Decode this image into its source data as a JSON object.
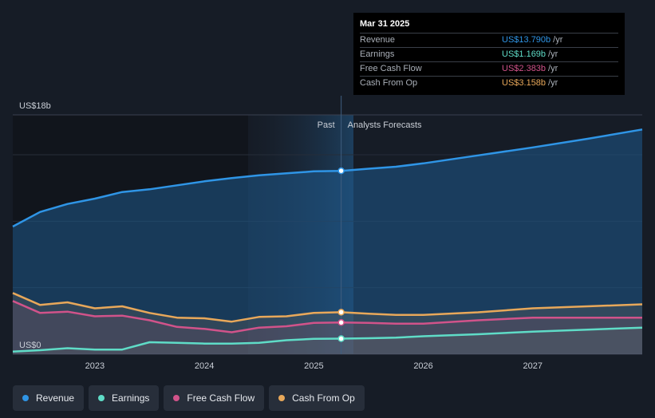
{
  "chart_data": {
    "type": "line",
    "y_top_label": "US$18b",
    "y_bottom_label": "US$0",
    "ylim": [
      0,
      18
    ],
    "xlim": [
      2022.25,
      2028.0
    ],
    "x_ticks": [
      2023,
      2024,
      2025,
      2026,
      2027
    ],
    "divider_x": 2025.25,
    "past_label": "Past",
    "forecast_label": "Analysts Forecasts",
    "series": [
      {
        "name": "Revenue",
        "color": "#2f95e6",
        "points": [
          [
            2022.25,
            9.6
          ],
          [
            2022.5,
            10.7
          ],
          [
            2022.75,
            11.3
          ],
          [
            2023.0,
            11.7
          ],
          [
            2023.25,
            12.2
          ],
          [
            2023.5,
            12.4
          ],
          [
            2023.75,
            12.7
          ],
          [
            2024.0,
            13.0
          ],
          [
            2024.25,
            13.25
          ],
          [
            2024.5,
            13.45
          ],
          [
            2024.75,
            13.6
          ],
          [
            2025.0,
            13.75
          ],
          [
            2025.25,
            13.79
          ],
          [
            2025.5,
            13.95
          ],
          [
            2025.75,
            14.1
          ],
          [
            2026.0,
            14.35
          ],
          [
            2026.5,
            14.95
          ],
          [
            2027.0,
            15.55
          ],
          [
            2027.5,
            16.2
          ],
          [
            2028.0,
            16.9
          ]
        ]
      },
      {
        "name": "Earnings",
        "color": "#5fdcc7",
        "points": [
          [
            2022.25,
            0.2
          ],
          [
            2022.5,
            0.3
          ],
          [
            2022.75,
            0.45
          ],
          [
            2023.0,
            0.35
          ],
          [
            2023.25,
            0.35
          ],
          [
            2023.5,
            0.9
          ],
          [
            2023.75,
            0.85
          ],
          [
            2024.0,
            0.8
          ],
          [
            2024.25,
            0.8
          ],
          [
            2024.5,
            0.85
          ],
          [
            2024.75,
            1.05
          ],
          [
            2025.0,
            1.15
          ],
          [
            2025.25,
            1.169
          ],
          [
            2025.5,
            1.2
          ],
          [
            2025.75,
            1.25
          ],
          [
            2026.0,
            1.35
          ],
          [
            2026.5,
            1.5
          ],
          [
            2027.0,
            1.7
          ],
          [
            2027.5,
            1.85
          ],
          [
            2028.0,
            2.0
          ]
        ]
      },
      {
        "name": "Free Cash Flow",
        "color": "#d1538a",
        "points": [
          [
            2022.25,
            4.0
          ],
          [
            2022.5,
            3.1
          ],
          [
            2022.75,
            3.2
          ],
          [
            2023.0,
            2.85
          ],
          [
            2023.25,
            2.9
          ],
          [
            2023.5,
            2.55
          ],
          [
            2023.75,
            2.05
          ],
          [
            2024.0,
            1.9
          ],
          [
            2024.25,
            1.65
          ],
          [
            2024.5,
            2.0
          ],
          [
            2024.75,
            2.1
          ],
          [
            2025.0,
            2.35
          ],
          [
            2025.25,
            2.383
          ],
          [
            2025.5,
            2.35
          ],
          [
            2025.75,
            2.3
          ],
          [
            2026.0,
            2.3
          ],
          [
            2026.5,
            2.55
          ],
          [
            2027.0,
            2.75
          ],
          [
            2027.5,
            2.75
          ],
          [
            2028.0,
            2.75
          ]
        ]
      },
      {
        "name": "Cash From Op",
        "color": "#e8a85a",
        "points": [
          [
            2022.25,
            4.6
          ],
          [
            2022.5,
            3.7
          ],
          [
            2022.75,
            3.9
          ],
          [
            2023.0,
            3.45
          ],
          [
            2023.25,
            3.6
          ],
          [
            2023.5,
            3.1
          ],
          [
            2023.75,
            2.75
          ],
          [
            2024.0,
            2.7
          ],
          [
            2024.25,
            2.45
          ],
          [
            2024.5,
            2.8
          ],
          [
            2024.75,
            2.85
          ],
          [
            2025.0,
            3.1
          ],
          [
            2025.25,
            3.158
          ],
          [
            2025.5,
            3.05
          ],
          [
            2025.75,
            2.95
          ],
          [
            2026.0,
            2.95
          ],
          [
            2026.5,
            3.15
          ],
          [
            2027.0,
            3.45
          ],
          [
            2027.5,
            3.6
          ],
          [
            2028.0,
            3.75
          ]
        ]
      }
    ]
  },
  "tooltip": {
    "date": "Mar 31 2025",
    "rows": [
      {
        "label": "Revenue",
        "value": "US$13.790b",
        "unit": "/yr",
        "color": "#2f95e6"
      },
      {
        "label": "Earnings",
        "value": "US$1.169b",
        "unit": "/yr",
        "color": "#5fdcc7"
      },
      {
        "label": "Free Cash Flow",
        "value": "US$2.383b",
        "unit": "/yr",
        "color": "#d1538a"
      },
      {
        "label": "Cash From Op",
        "value": "US$3.158b",
        "unit": "/yr",
        "color": "#e8a85a"
      }
    ]
  },
  "legend": [
    {
      "label": "Revenue",
      "color": "#2f95e6"
    },
    {
      "label": "Earnings",
      "color": "#5fdcc7"
    },
    {
      "label": "Free Cash Flow",
      "color": "#d1538a"
    },
    {
      "label": "Cash From Op",
      "color": "#e8a85a"
    }
  ]
}
